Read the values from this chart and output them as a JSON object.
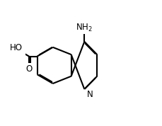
{
  "background_color": "#ffffff",
  "line_color": "#000000",
  "line_width": 1.5,
  "font_size": 8.5,
  "figsize": [
    2.3,
    1.78
  ],
  "dpi": 100,
  "xlim": [
    -0.05,
    1.05
  ],
  "ylim": [
    -0.05,
    1.15
  ]
}
